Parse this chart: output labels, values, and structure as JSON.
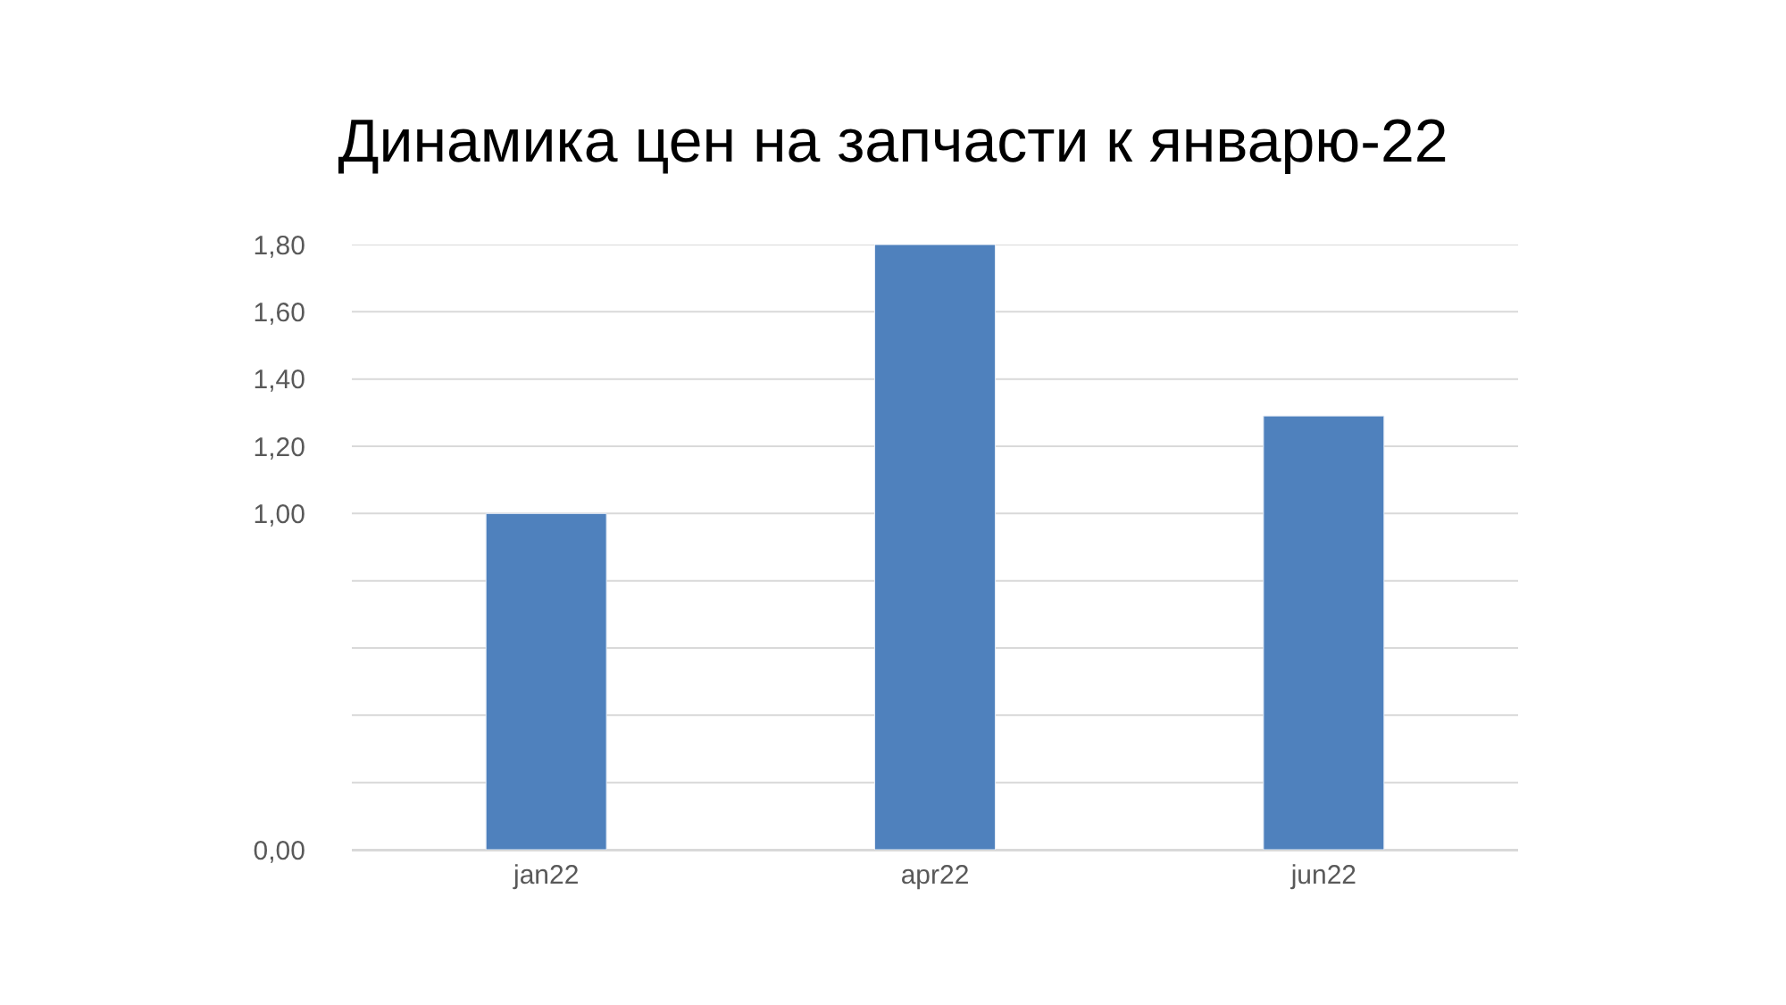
{
  "chart_data": {
    "type": "bar",
    "title": "Динамика цен на запчасти к январю-22",
    "categories": [
      "jan22",
      "apr22",
      "jun22"
    ],
    "series": [
      {
        "color": "#4f81bd",
        "values": [
          1.0,
          1.8,
          1.29
        ]
      }
    ],
    "ylim": [
      0,
      1.8
    ],
    "yticks": [
      {
        "value": 0,
        "label": "0,00"
      },
      {
        "value": 0.2,
        "label": null
      },
      {
        "value": 0.4,
        "label": null
      },
      {
        "value": 0.6,
        "label": null
      },
      {
        "value": 0.8,
        "label": null
      },
      {
        "value": 1.0,
        "label": "1,00"
      },
      {
        "value": 1.2,
        "label": "1,20"
      },
      {
        "value": 1.4,
        "label": "1,40"
      },
      {
        "value": 1.6,
        "label": "1,60"
      },
      {
        "value": 1.8,
        "label": "1,80"
      }
    ],
    "grid": "y"
  }
}
